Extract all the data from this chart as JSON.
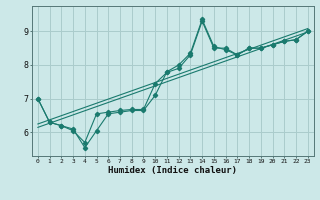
{
  "title": "",
  "xlabel": "Humidex (Indice chaleur)",
  "bg_color": "#cce8e8",
  "grid_color": "#aacccc",
  "line_color": "#1a7a6e",
  "xlim": [
    -0.5,
    23.5
  ],
  "ylim": [
    5.3,
    9.75
  ],
  "yticks": [
    6,
    7,
    8,
    9
  ],
  "xticks": [
    0,
    1,
    2,
    3,
    4,
    5,
    6,
    7,
    8,
    9,
    10,
    11,
    12,
    13,
    14,
    15,
    16,
    17,
    18,
    19,
    20,
    21,
    22,
    23
  ],
  "series1_x": [
    0,
    1,
    2,
    3,
    4,
    5,
    6,
    7,
    8,
    9,
    10,
    11,
    12,
    13,
    14,
    15,
    16,
    17,
    18,
    19,
    20,
    21,
    22,
    23
  ],
  "series1_y": [
    7.0,
    6.3,
    6.2,
    6.05,
    5.7,
    6.55,
    6.6,
    6.65,
    6.68,
    6.68,
    7.45,
    7.78,
    7.9,
    8.3,
    9.3,
    8.5,
    8.5,
    8.3,
    8.5,
    8.5,
    8.6,
    8.7,
    8.75,
    9.0
  ],
  "series2_x": [
    0,
    1,
    2,
    3,
    4,
    5,
    6,
    7,
    8,
    9,
    10,
    11,
    12,
    13,
    14,
    15,
    16,
    17,
    18,
    19,
    20,
    21,
    22,
    23
  ],
  "series2_y": [
    7.0,
    6.3,
    6.2,
    6.1,
    5.55,
    6.05,
    6.55,
    6.6,
    6.65,
    6.65,
    7.1,
    7.8,
    8.0,
    8.35,
    9.35,
    8.55,
    8.45,
    8.3,
    8.5,
    8.5,
    8.6,
    8.7,
    8.75,
    9.0
  ],
  "trend1_x": [
    0,
    23
  ],
  "trend1_y": [
    6.15,
    8.98
  ],
  "trend2_x": [
    0,
    23
  ],
  "trend2_y": [
    6.25,
    9.08
  ]
}
